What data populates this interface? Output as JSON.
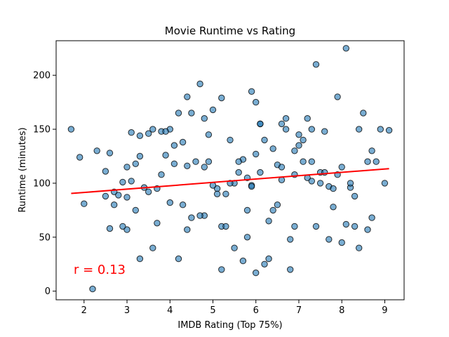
{
  "chart_data": {
    "type": "scatter",
    "title": "Movie Runtime vs Rating",
    "xlabel": "IMDB Rating (Top 75%)",
    "ylabel": "Runtime (minutes)",
    "xlim": [
      1.35,
      9.45
    ],
    "ylim": [
      -8,
      232
    ],
    "xticks": [
      2,
      3,
      4,
      5,
      6,
      7,
      8,
      9
    ],
    "yticks": [
      0,
      50,
      100,
      150,
      200
    ],
    "grid": false,
    "point_color": "#1f77b4",
    "point_edge_color": "#000000",
    "point_alpha": 0.6,
    "trend_color": "#ff0000",
    "annotation_color": "#ff0000",
    "annotation": "r = 0.13",
    "trendline": {
      "x": [
        1.7,
        9.1
      ],
      "y": [
        90.5,
        113.5
      ]
    },
    "series": [
      {
        "name": "",
        "x": [
          1.7,
          1.9,
          2.0,
          2.2,
          2.3,
          2.5,
          2.5,
          2.6,
          2.7,
          2.7,
          2.8,
          2.9,
          3.0,
          3.0,
          3.0,
          3.1,
          3.1,
          3.2,
          3.2,
          3.3,
          3.3,
          3.4,
          3.5,
          3.5,
          3.6,
          3.7,
          3.7,
          3.8,
          3.8,
          3.9,
          4.0,
          4.0,
          4.1,
          4.2,
          4.2,
          4.3,
          4.3,
          4.4,
          4.4,
          4.5,
          4.6,
          4.7,
          4.8,
          4.8,
          4.9,
          5.0,
          5.1,
          5.2,
          5.2,
          5.3,
          5.4,
          5.5,
          5.6,
          5.7,
          5.8,
          5.9,
          6.0,
          6.1,
          6.2,
          6.3,
          6.4,
          6.5,
          6.6,
          6.7,
          6.8,
          6.9,
          7.0,
          7.1,
          7.2,
          7.3,
          7.4,
          7.5,
          7.6,
          7.7,
          7.8,
          7.9,
          8.0,
          8.1,
          8.2,
          8.3,
          8.4,
          8.5,
          8.6,
          8.7,
          8.8,
          8.9,
          9.1,
          9.0,
          4.4,
          5.2,
          5.8,
          6.1,
          6.9,
          7.6,
          7.8,
          8.1,
          8.3,
          8.6,
          6.0,
          6.6,
          7.3,
          7.1,
          6.3,
          5.5,
          4.8,
          4.5,
          5.9,
          7.4,
          8.0,
          6.7,
          6.2,
          5.7,
          7.0,
          7.5,
          6.4,
          5.0,
          5.6,
          6.8,
          7.7,
          8.2,
          4.9,
          3.9,
          3.6,
          3.3,
          2.9,
          2.6,
          4.1,
          4.7,
          5.1,
          5.3,
          5.4,
          5.8,
          6.5,
          7.2,
          7.9,
          8.4,
          8.7,
          6.0,
          6.9,
          7.3,
          6.1,
          6.6,
          5.9
        ],
        "y": [
          150,
          124,
          81,
          2,
          130,
          111,
          88,
          58,
          80,
          92,
          89,
          101,
          87,
          115,
          57,
          147,
          102,
          75,
          118,
          125,
          144,
          96,
          146,
          92,
          150,
          63,
          95,
          148,
          108,
          126,
          82,
          150,
          118,
          30,
          165,
          80,
          138,
          116,
          180,
          68,
          120,
          192,
          115,
          160,
          145,
          168,
          95,
          20,
          179,
          90,
          140,
          100,
          110,
          122,
          105,
          98,
          17,
          155,
          25,
          65,
          132,
          117,
          103,
          150,
          20,
          108,
          135,
          120,
          105,
          102,
          210,
          110,
          148,
          97,
          78,
          180,
          115,
          225,
          96,
          88,
          150,
          165,
          57,
          130,
          120,
          150,
          149,
          100,
          57,
          60,
          50,
          110,
          60,
          110,
          95,
          62,
          60,
          120,
          127,
          155,
          150,
          140,
          30,
          40,
          70,
          165,
          185,
          60,
          45,
          160,
          140,
          28,
          145,
          100,
          75,
          98,
          120,
          48,
          48,
          100,
          120,
          148,
          40,
          30,
          60,
          128,
          135,
          70,
          90,
          60,
          100,
          75,
          80,
          160,
          108,
          40,
          68,
          175,
          130,
          120,
          155,
          115,
          97
        ]
      }
    ]
  }
}
